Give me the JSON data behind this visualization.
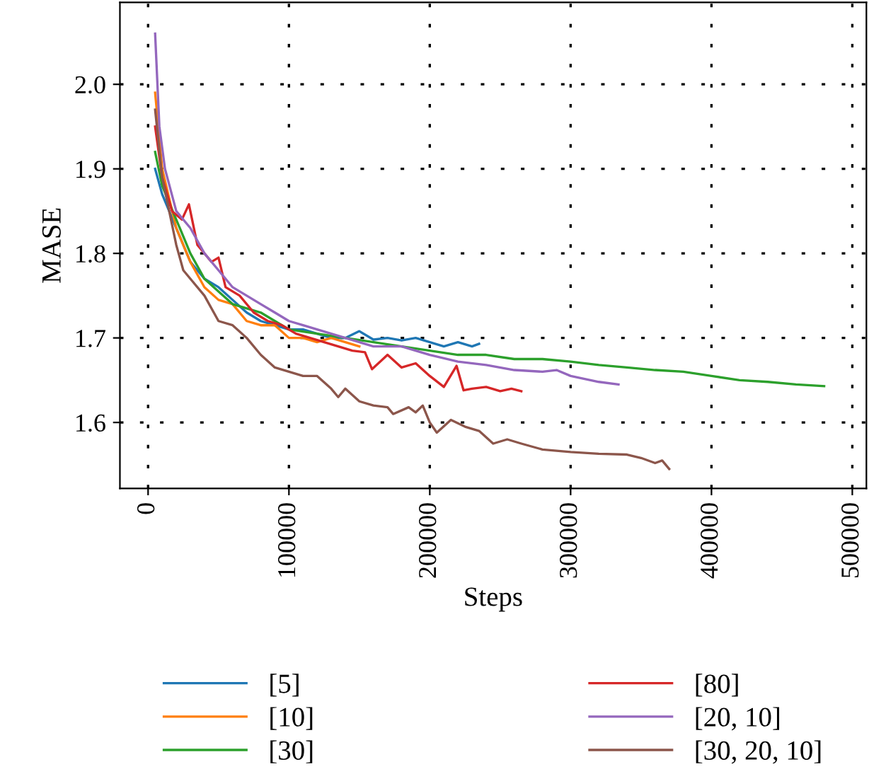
{
  "chart_data": {
    "type": "line",
    "xlabel": "Steps",
    "ylabel": "MASE",
    "xlim": [
      -20000,
      510000
    ],
    "ylim": [
      1.522,
      2.097
    ],
    "xticks": [
      0,
      100000,
      200000,
      300000,
      400000,
      500000
    ],
    "yticks": [
      {
        "value": 1.6,
        "label": "1.6"
      },
      {
        "value": 1.7,
        "label": "1.7"
      },
      {
        "value": 1.8,
        "label": "1.8"
      },
      {
        "value": 1.9,
        "label": "1.9"
      },
      {
        "value": 2.0,
        "label": "2.0"
      }
    ],
    "grid": true,
    "legend": "bottom",
    "marker": "none",
    "line_style": "solid",
    "series": [
      {
        "name": "[5]",
        "color": "#1f77b4",
        "x": [
          5000,
          10000,
          20000,
          30000,
          40000,
          50000,
          60000,
          70000,
          80000,
          90000,
          100000,
          110000,
          120000,
          130000,
          140000,
          150000,
          160000,
          170000,
          180000,
          190000,
          200000,
          210000,
          220000,
          230000,
          235000
        ],
        "values": [
          1.9,
          1.87,
          1.83,
          1.79,
          1.77,
          1.76,
          1.745,
          1.73,
          1.72,
          1.715,
          1.71,
          1.71,
          1.705,
          1.7,
          1.7,
          1.708,
          1.698,
          1.7,
          1.697,
          1.7,
          1.695,
          1.69,
          1.695,
          1.69,
          1.693
        ]
      },
      {
        "name": "[10]",
        "color": "#ff7f0e",
        "x": [
          5000,
          10000,
          20000,
          30000,
          40000,
          50000,
          60000,
          70000,
          80000,
          90000,
          100000,
          110000,
          120000,
          130000,
          140000,
          150000
        ],
        "values": [
          1.99,
          1.9,
          1.83,
          1.79,
          1.76,
          1.745,
          1.74,
          1.72,
          1.715,
          1.715,
          1.7,
          1.7,
          1.695,
          1.7,
          1.695,
          1.69
        ]
      },
      {
        "name": "[30]",
        "color": "#2ca02c",
        "x": [
          5000,
          10000,
          20000,
          30000,
          40000,
          50000,
          60000,
          70000,
          80000,
          90000,
          100000,
          120000,
          140000,
          160000,
          180000,
          200000,
          220000,
          240000,
          260000,
          280000,
          300000,
          320000,
          340000,
          360000,
          380000,
          400000,
          420000,
          440000,
          460000,
          480000
        ],
        "values": [
          1.92,
          1.88,
          1.84,
          1.8,
          1.77,
          1.755,
          1.74,
          1.735,
          1.73,
          1.72,
          1.71,
          1.705,
          1.7,
          1.695,
          1.69,
          1.685,
          1.68,
          1.68,
          1.675,
          1.675,
          1.672,
          1.668,
          1.665,
          1.662,
          1.66,
          1.655,
          1.65,
          1.648,
          1.645,
          1.643
        ]
      },
      {
        "name": "[80]",
        "color": "#d62728",
        "x": [
          5000,
          10000,
          17000,
          24000,
          29000,
          35000,
          45000,
          50000,
          55000,
          65000,
          75000,
          85000,
          95000,
          105000,
          115000,
          125000,
          135000,
          145000,
          154000,
          159000,
          170000,
          180000,
          190000,
          200000,
          210000,
          219000,
          224000,
          230000,
          240000,
          250000,
          258000,
          265000
        ],
        "values": [
          1.95,
          1.89,
          1.85,
          1.84,
          1.858,
          1.81,
          1.79,
          1.795,
          1.76,
          1.75,
          1.73,
          1.72,
          1.715,
          1.705,
          1.7,
          1.695,
          1.69,
          1.685,
          1.683,
          1.663,
          1.68,
          1.665,
          1.67,
          1.655,
          1.642,
          1.667,
          1.638,
          1.64,
          1.642,
          1.637,
          1.64,
          1.637
        ]
      },
      {
        "name": "[20, 10]",
        "color": "#9467bd",
        "x": [
          5000,
          8000,
          12000,
          20000,
          30000,
          40000,
          50000,
          60000,
          70000,
          80000,
          90000,
          100000,
          110000,
          120000,
          130000,
          140000,
          160000,
          180000,
          200000,
          220000,
          240000,
          260000,
          280000,
          290000,
          300000,
          320000,
          334000
        ],
        "values": [
          2.06,
          1.95,
          1.9,
          1.85,
          1.83,
          1.8,
          1.78,
          1.76,
          1.75,
          1.74,
          1.73,
          1.72,
          1.715,
          1.71,
          1.705,
          1.7,
          1.69,
          1.69,
          1.68,
          1.672,
          1.668,
          1.662,
          1.66,
          1.662,
          1.655,
          1.648,
          1.645
        ]
      },
      {
        "name": "[30, 20, 10]",
        "color": "#8c564b",
        "x": [
          5000,
          10000,
          20000,
          25000,
          30000,
          40000,
          50000,
          60000,
          70000,
          80000,
          90000,
          100000,
          110000,
          120000,
          130000,
          135000,
          140000,
          150000,
          160000,
          170000,
          174000,
          185000,
          190000,
          195000,
          200000,
          205000,
          215000,
          225000,
          235000,
          245000,
          255000,
          265000,
          280000,
          300000,
          320000,
          340000,
          350000,
          360000,
          365000,
          370000
        ],
        "values": [
          1.97,
          1.89,
          1.81,
          1.78,
          1.77,
          1.75,
          1.72,
          1.715,
          1.7,
          1.68,
          1.665,
          1.66,
          1.655,
          1.655,
          1.64,
          1.63,
          1.64,
          1.625,
          1.62,
          1.618,
          1.61,
          1.618,
          1.612,
          1.62,
          1.6,
          1.588,
          1.603,
          1.595,
          1.59,
          1.575,
          1.58,
          1.575,
          1.568,
          1.565,
          1.563,
          1.562,
          1.558,
          1.552,
          1.555,
          1.545
        ]
      }
    ]
  }
}
